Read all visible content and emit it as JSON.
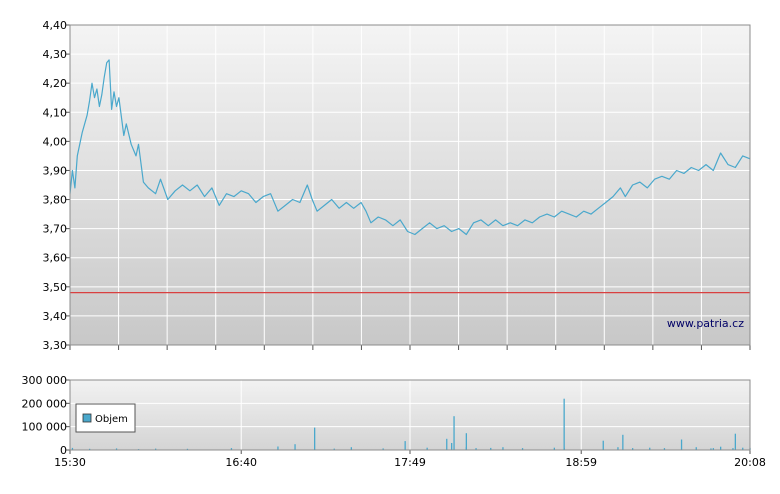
{
  "chart_data": [
    {
      "type": "line",
      "title": "",
      "xlabel": "",
      "ylabel": "",
      "ylim": [
        3.3,
        4.4
      ],
      "y_ticks": [
        "3,30",
        "3,40",
        "3,50",
        "3,60",
        "3,70",
        "3,80",
        "3,90",
        "4,00",
        "4,10",
        "4,20",
        "4,30",
        "4,40"
      ],
      "x_range": [
        "15:30",
        "20:08"
      ],
      "x_ticks": [
        "15:30",
        "16:40",
        "17:49",
        "18:59",
        "20:08"
      ],
      "grid": true,
      "watermark": "www.patria.cz",
      "reference_line": {
        "value": 3.48,
        "color": "#d94040"
      },
      "line_color": "#4aa8cc",
      "series": [
        {
          "points": [
            [
              "15:30",
              3.82
            ],
            [
              "15:31",
              3.9
            ],
            [
              "15:32",
              3.84
            ],
            [
              "15:33",
              3.95
            ],
            [
              "15:35",
              4.03
            ],
            [
              "15:37",
              4.09
            ],
            [
              "15:38",
              4.14
            ],
            [
              "15:39",
              4.2
            ],
            [
              "15:40",
              4.15
            ],
            [
              "15:41",
              4.18
            ],
            [
              "15:42",
              4.12
            ],
            [
              "15:43",
              4.16
            ],
            [
              "15:44",
              4.22
            ],
            [
              "15:45",
              4.27
            ],
            [
              "15:46",
              4.28
            ],
            [
              "15:47",
              4.11
            ],
            [
              "15:48",
              4.17
            ],
            [
              "15:49",
              4.12
            ],
            [
              "15:50",
              4.15
            ],
            [
              "15:52",
              4.02
            ],
            [
              "15:53",
              4.06
            ],
            [
              "15:55",
              3.99
            ],
            [
              "15:57",
              3.95
            ],
            [
              "15:58",
              3.99
            ],
            [
              "16:00",
              3.86
            ],
            [
              "16:02",
              3.84
            ],
            [
              "16:05",
              3.82
            ],
            [
              "16:07",
              3.87
            ],
            [
              "16:10",
              3.8
            ],
            [
              "16:13",
              3.83
            ],
            [
              "16:16",
              3.85
            ],
            [
              "16:19",
              3.83
            ],
            [
              "16:22",
              3.85
            ],
            [
              "16:25",
              3.81
            ],
            [
              "16:28",
              3.84
            ],
            [
              "16:31",
              3.78
            ],
            [
              "16:34",
              3.82
            ],
            [
              "16:37",
              3.81
            ],
            [
              "16:40",
              3.83
            ],
            [
              "16:43",
              3.82
            ],
            [
              "16:46",
              3.79
            ],
            [
              "16:49",
              3.81
            ],
            [
              "16:52",
              3.82
            ],
            [
              "16:55",
              3.76
            ],
            [
              "16:58",
              3.78
            ],
            [
              "17:01",
              3.8
            ],
            [
              "17:04",
              3.79
            ],
            [
              "17:07",
              3.85
            ],
            [
              "17:09",
              3.8
            ],
            [
              "17:11",
              3.76
            ],
            [
              "17:14",
              3.78
            ],
            [
              "17:17",
              3.8
            ],
            [
              "17:20",
              3.77
            ],
            [
              "17:23",
              3.79
            ],
            [
              "17:26",
              3.77
            ],
            [
              "17:29",
              3.79
            ],
            [
              "17:31",
              3.76
            ],
            [
              "17:33",
              3.72
            ],
            [
              "17:36",
              3.74
            ],
            [
              "17:39",
              3.73
            ],
            [
              "17:42",
              3.71
            ],
            [
              "17:45",
              3.73
            ],
            [
              "17:48",
              3.69
            ],
            [
              "17:51",
              3.68
            ],
            [
              "17:54",
              3.7
            ],
            [
              "17:57",
              3.72
            ],
            [
              "18:00",
              3.7
            ],
            [
              "18:03",
              3.71
            ],
            [
              "18:06",
              3.69
            ],
            [
              "18:09",
              3.7
            ],
            [
              "18:12",
              3.68
            ],
            [
              "18:15",
              3.72
            ],
            [
              "18:18",
              3.73
            ],
            [
              "18:21",
              3.71
            ],
            [
              "18:24",
              3.73
            ],
            [
              "18:27",
              3.71
            ],
            [
              "18:30",
              3.72
            ],
            [
              "18:33",
              3.71
            ],
            [
              "18:36",
              3.73
            ],
            [
              "18:39",
              3.72
            ],
            [
              "18:42",
              3.74
            ],
            [
              "18:45",
              3.75
            ],
            [
              "18:48",
              3.74
            ],
            [
              "18:51",
              3.76
            ],
            [
              "18:54",
              3.75
            ],
            [
              "18:57",
              3.74
            ],
            [
              "19:00",
              3.76
            ],
            [
              "19:03",
              3.75
            ],
            [
              "19:06",
              3.77
            ],
            [
              "19:09",
              3.79
            ],
            [
              "19:12",
              3.81
            ],
            [
              "19:15",
              3.84
            ],
            [
              "19:17",
              3.81
            ],
            [
              "19:20",
              3.85
            ],
            [
              "19:23",
              3.86
            ],
            [
              "19:26",
              3.84
            ],
            [
              "19:29",
              3.87
            ],
            [
              "19:32",
              3.88
            ],
            [
              "19:35",
              3.87
            ],
            [
              "19:38",
              3.9
            ],
            [
              "19:41",
              3.89
            ],
            [
              "19:44",
              3.91
            ],
            [
              "19:47",
              3.9
            ],
            [
              "19:50",
              3.92
            ],
            [
              "19:53",
              3.9
            ],
            [
              "19:56",
              3.96
            ],
            [
              "19:59",
              3.92
            ],
            [
              "20:02",
              3.91
            ],
            [
              "20:05",
              3.95
            ],
            [
              "20:08",
              3.94
            ]
          ]
        }
      ]
    },
    {
      "type": "bar",
      "title": "",
      "xlabel": "",
      "ylabel": "",
      "ylim": [
        0,
        300000
      ],
      "y_ticks": [
        "0",
        "100 000",
        "200 000",
        "300 000"
      ],
      "x_range": [
        "15:30",
        "20:08"
      ],
      "x_ticks": [
        "15:30",
        "16:40",
        "17:49",
        "18:59",
        "20:08"
      ],
      "grid": true,
      "legend": {
        "position": "left",
        "entries": [
          "Objem"
        ]
      },
      "series": [
        {
          "name": "Objem",
          "color": "#4aa8cc",
          "points": [
            [
              "15:31",
              9000
            ],
            [
              "15:38",
              5000
            ],
            [
              "15:49",
              7000
            ],
            [
              "15:58",
              4000
            ],
            [
              "16:05",
              6000
            ],
            [
              "16:18",
              5000
            ],
            [
              "16:36",
              8000
            ],
            [
              "16:55",
              15000
            ],
            [
              "17:02",
              25000
            ],
            [
              "17:10",
              96000
            ],
            [
              "17:18",
              6000
            ],
            [
              "17:25",
              12000
            ],
            [
              "17:38",
              7000
            ],
            [
              "17:47",
              38000
            ],
            [
              "17:56",
              10000
            ],
            [
              "18:06",
              30000
            ],
            [
              "18:12",
              12000
            ],
            [
              "18:16",
              8000
            ],
            [
              "18:22",
              9000
            ],
            [
              "18:27",
              12000
            ],
            [
              "18:35",
              8000
            ],
            [
              "18:48",
              10000
            ],
            [
              "18:52",
              9000
            ],
            [
              "19:08",
              40000
            ],
            [
              "19:14",
              12000
            ],
            [
              "19:20",
              8000
            ],
            [
              "19:27",
              10000
            ],
            [
              "19:33",
              8000
            ],
            [
              "19:40",
              45000
            ],
            [
              "19:46",
              12000
            ],
            [
              "19:52",
              7000
            ],
            [
              "20:02",
              70000
            ],
            [
              "20:05",
              10000
            ],
            [
              "20:08",
              9000
            ],
            [
              "18:04",
              48000
            ],
            [
              "18:07",
              145000
            ],
            [
              "18:12",
              72000
            ],
            [
              "18:52",
              220000
            ],
            [
              "19:16",
              65000
            ],
            [
              "19:53",
              8000
            ],
            [
              "19:56",
              14000
            ],
            [
              "20:01",
              8000
            ]
          ]
        }
      ]
    }
  ]
}
